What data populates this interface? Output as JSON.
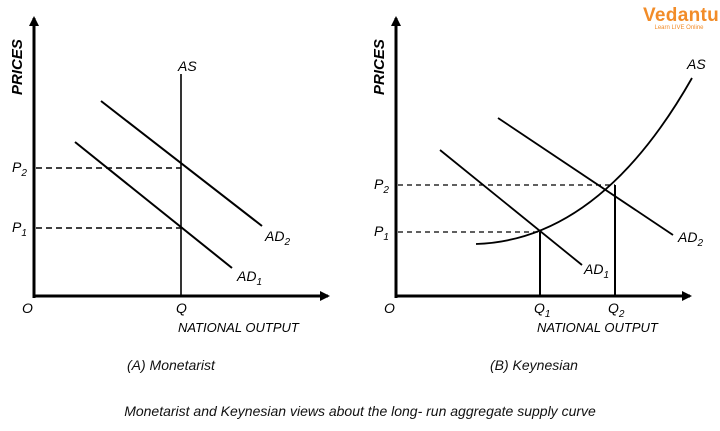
{
  "logo": {
    "name": "Vedantu",
    "tagline": "Learn LIVE Online"
  },
  "caption": "Monetarist and Keynesian views about the long- run aggregate supply curve",
  "panels": [
    {
      "id": "a",
      "caption": "(A) Monetarist",
      "y_axis_label": "PRICES",
      "x_axis_label": "NATIONAL OUTPUT",
      "origin_label": "O",
      "curves": {
        "supply": "AS",
        "demand1_main": "AD",
        "demand1_sub": "1",
        "demand2_main": "AD",
        "demand2_sub": "2"
      },
      "price_labels": [
        {
          "main": "P",
          "sub": "2"
        },
        {
          "main": "P",
          "sub": "1"
        }
      ],
      "quantity_labels": [
        {
          "main": "Q",
          "sub": ""
        }
      ]
    },
    {
      "id": "b",
      "caption": "(B) Keynesian",
      "y_axis_label": "PRICES",
      "x_axis_label": "NATIONAL OUTPUT",
      "origin_label": "O",
      "curves": {
        "supply": "AS",
        "demand1_main": "AD",
        "demand1_sub": "1",
        "demand2_main": "AD",
        "demand2_sub": "2"
      },
      "price_labels": [
        {
          "main": "P",
          "sub": "2"
        },
        {
          "main": "P",
          "sub": "1"
        }
      ],
      "quantity_labels": [
        {
          "main": "Q",
          "sub": "1"
        },
        {
          "main": "Q",
          "sub": "2"
        }
      ]
    }
  ]
}
